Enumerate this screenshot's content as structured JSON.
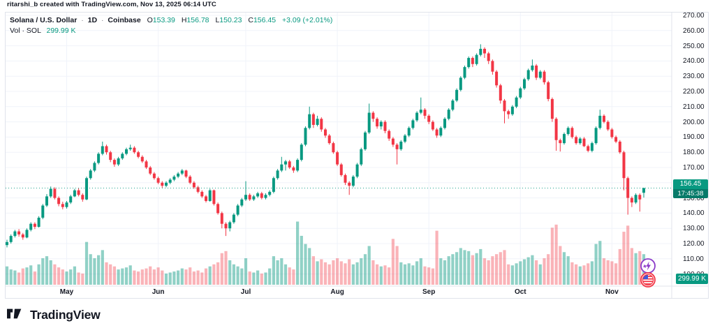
{
  "attribution": "ritarshi_b created with TradingView.com, Nov 13, 2025 06:14 UTC",
  "legend": {
    "symbol": "Solana / U.S. Dollar",
    "separator": "·",
    "interval": "1D",
    "exchange": "Coinbase",
    "ohlc": {
      "o_label": "O",
      "o": "153.39",
      "h_label": "H",
      "h": "156.78",
      "l_label": "L",
      "l": "150.23",
      "c_label": "C",
      "c": "156.45"
    },
    "change": "+3.09 (+2.01%)",
    "volume_label": "Vol · SOL",
    "volume_value": "299.99 K"
  },
  "axis": {
    "price_ticks": [
      "270.00",
      "260.00",
      "250.00",
      "240.00",
      "230.00",
      "220.00",
      "210.00",
      "200.00",
      "190.00",
      "180.00",
      "170.00",
      "160.00",
      "150.00",
      "140.00",
      "130.00",
      "120.00",
      "110.00",
      "100.00"
    ],
    "time_ticks": [
      {
        "label": "May",
        "index": 15
      },
      {
        "label": "Jun",
        "index": 38
      },
      {
        "label": "Jul",
        "index": 60
      },
      {
        "label": "Aug",
        "index": 83
      },
      {
        "label": "Sep",
        "index": 106
      },
      {
        "label": "Oct",
        "index": 129
      },
      {
        "label": "Nov",
        "index": 152
      }
    ],
    "price_tag": {
      "price": "156.45",
      "countdown": "17:45:38"
    },
    "volume_tag": "299.99 K"
  },
  "events": [
    {
      "name": "crypto-event",
      "color": "#8c3cc9"
    },
    {
      "name": "us-economic-event",
      "color": "#f23645"
    }
  ],
  "footer": {
    "brand": "TradingView"
  },
  "colors": {
    "up": "#089981",
    "down": "#f23645",
    "vol_up": "rgba(8,153,129,0.45)",
    "vol_down": "rgba(242,54,69,0.38)",
    "grid": "#f0f3fa",
    "axis_line": "#e0e3eb",
    "text": "#131722",
    "accent": "#089981"
  },
  "chart_data": {
    "type": "candlestick+volume",
    "title": "Solana / U.S. Dollar",
    "interval": "1D",
    "exchange": "Coinbase",
    "last": {
      "open": 153.39,
      "high": 156.78,
      "low": 150.23,
      "close": 156.45,
      "change": "+3.09 (+2.01%)",
      "volume_k": 299.99,
      "countdown": "17:45:38"
    },
    "ylim": [
      92,
      272
    ],
    "grid": true,
    "legend_position": "top-left",
    "columns": [
      "open",
      "high",
      "low",
      "close",
      "volume_k"
    ],
    "candles": [
      [
        119,
        122.5,
        117.5,
        121,
        180
      ],
      [
        121,
        126,
        120,
        125,
        150
      ],
      [
        125,
        129,
        124,
        128,
        140
      ],
      [
        128,
        129.5,
        124.5,
        126,
        120
      ],
      [
        126,
        127,
        122.5,
        124,
        160
      ],
      [
        124,
        130,
        123.5,
        129,
        170
      ],
      [
        129,
        134,
        128,
        133,
        190
      ],
      [
        133,
        134,
        129.5,
        131,
        130
      ],
      [
        131,
        138,
        130.5,
        137,
        200
      ],
      [
        137,
        146,
        136,
        145,
        260
      ],
      [
        145,
        152.5,
        144,
        151,
        280
      ],
      [
        151,
        157.5,
        150,
        156,
        240
      ],
      [
        156,
        157,
        149,
        150,
        200
      ],
      [
        150,
        151,
        144.5,
        146,
        170
      ],
      [
        146,
        147.5,
        142.5,
        144,
        150
      ],
      [
        144,
        148,
        143,
        147,
        130
      ],
      [
        147,
        152,
        146,
        151,
        150
      ],
      [
        151,
        156,
        150.5,
        155,
        180
      ],
      [
        155,
        156.5,
        151,
        152,
        120
      ],
      [
        152,
        153,
        147.5,
        149,
        110
      ],
      [
        149,
        164,
        148.5,
        163,
        420
      ],
      [
        163,
        169,
        162,
        168,
        300
      ],
      [
        168,
        174,
        167,
        173,
        260
      ],
      [
        173,
        180,
        172,
        179,
        290
      ],
      [
        179,
        187,
        178,
        184,
        340
      ],
      [
        184,
        185,
        178.5,
        180,
        220
      ],
      [
        180,
        181,
        173.5,
        175,
        200
      ],
      [
        175,
        176,
        170.5,
        172,
        180
      ],
      [
        172,
        177,
        171,
        176,
        150
      ],
      [
        176,
        180,
        175,
        179,
        160
      ],
      [
        179,
        183,
        178,
        182,
        170
      ],
      [
        182,
        185,
        181,
        183,
        190
      ],
      [
        183,
        184,
        179,
        180,
        140
      ],
      [
        180,
        181,
        176,
        177,
        130
      ],
      [
        177,
        178,
        173,
        174,
        150
      ],
      [
        174,
        175,
        169,
        170,
        160
      ],
      [
        170,
        171,
        165,
        166,
        180
      ],
      [
        166,
        167,
        162,
        163,
        150
      ],
      [
        163,
        164,
        159,
        160,
        170
      ],
      [
        160,
        161,
        156.5,
        158,
        140
      ],
      [
        158,
        161,
        157,
        160,
        110
      ],
      [
        160,
        163,
        159,
        162,
        120
      ],
      [
        162,
        165,
        161,
        164,
        130
      ],
      [
        164,
        167,
        163,
        166,
        140
      ],
      [
        166,
        169,
        165,
        168,
        160
      ],
      [
        168,
        168.5,
        163,
        164,
        150
      ],
      [
        164,
        165,
        159,
        160,
        170
      ],
      [
        160,
        161,
        156,
        157,
        130
      ],
      [
        157,
        158,
        153,
        154,
        140
      ],
      [
        154,
        155,
        150,
        151,
        120
      ],
      [
        151,
        152,
        147,
        148,
        160
      ],
      [
        148,
        156,
        147.5,
        155,
        180
      ],
      [
        155,
        155.5,
        145,
        146,
        200
      ],
      [
        146,
        147,
        139,
        140,
        220
      ],
      [
        140,
        141,
        130,
        133,
        310
      ],
      [
        133,
        134,
        125,
        130,
        330
      ],
      [
        130,
        135,
        128,
        134,
        240
      ],
      [
        134,
        140,
        133,
        139,
        200
      ],
      [
        139,
        146,
        138,
        145,
        180
      ],
      [
        145,
        150,
        144,
        149,
        160
      ],
      [
        149,
        161,
        148,
        152,
        260
      ],
      [
        152,
        153,
        148,
        149,
        130
      ],
      [
        149,
        152,
        148,
        151,
        120
      ],
      [
        151,
        154,
        150,
        153,
        140
      ],
      [
        153,
        154,
        149,
        150,
        110
      ],
      [
        150,
        153,
        149,
        152,
        120
      ],
      [
        152,
        155,
        151,
        154,
        160
      ],
      [
        154,
        164,
        153,
        163,
        280
      ],
      [
        163,
        169,
        162,
        168,
        240
      ],
      [
        168,
        177,
        167,
        172,
        260
      ],
      [
        172,
        175,
        168,
        174,
        200
      ],
      [
        174,
        175,
        169,
        170,
        170
      ],
      [
        170,
        171,
        166.5,
        168,
        150
      ],
      [
        168,
        176,
        167,
        175,
        620
      ],
      [
        175,
        186,
        174,
        185,
        480
      ],
      [
        185,
        197,
        184,
        196,
        400
      ],
      [
        196,
        210,
        195,
        205,
        360
      ],
      [
        205,
        206,
        196,
        198,
        280
      ],
      [
        198,
        204,
        197,
        202,
        230
      ],
      [
        202,
        203,
        193.5,
        195,
        250
      ],
      [
        195,
        196,
        189.5,
        191,
        220
      ],
      [
        191,
        192,
        185,
        186,
        200
      ],
      [
        186,
        187,
        179,
        180,
        240
      ],
      [
        180,
        181,
        171,
        172,
        260
      ],
      [
        172,
        173,
        164,
        165,
        230
      ],
      [
        165,
        166,
        158.5,
        160,
        210
      ],
      [
        160,
        161,
        152,
        158,
        250
      ],
      [
        158,
        165,
        157,
        164,
        200
      ],
      [
        164,
        173,
        163,
        172,
        220
      ],
      [
        172,
        183,
        171,
        182,
        260
      ],
      [
        182,
        194,
        181,
        193,
        300
      ],
      [
        193,
        212,
        192,
        206,
        380
      ],
      [
        206,
        207,
        200,
        202,
        240
      ],
      [
        202,
        203,
        195.5,
        197,
        200
      ],
      [
        197,
        201,
        195,
        200,
        180
      ],
      [
        200,
        201,
        192.5,
        194,
        190
      ],
      [
        194,
        195,
        187.5,
        189,
        170
      ],
      [
        189,
        190,
        183.5,
        185,
        450
      ],
      [
        185,
        186,
        172,
        182,
        380
      ],
      [
        182,
        188,
        181,
        187,
        220
      ],
      [
        187,
        192,
        186,
        191,
        200
      ],
      [
        191,
        197,
        190,
        196,
        210
      ],
      [
        196,
        202,
        195,
        201,
        190
      ],
      [
        201,
        207,
        200,
        206,
        230
      ],
      [
        206,
        216,
        205,
        208,
        260
      ],
      [
        208,
        209,
        202,
        204,
        180
      ],
      [
        204,
        205,
        198.5,
        200,
        170
      ],
      [
        200,
        201,
        194,
        195,
        160
      ],
      [
        195,
        196,
        189.5,
        191,
        530
      ],
      [
        191,
        197,
        190,
        196,
        260
      ],
      [
        196,
        203,
        195,
        202,
        240
      ],
      [
        202,
        209,
        201,
        208,
        280
      ],
      [
        208,
        215,
        207,
        214,
        300
      ],
      [
        214,
        222,
        213,
        221,
        320
      ],
      [
        221,
        230,
        220,
        229,
        360
      ],
      [
        229,
        237,
        228,
        236,
        340
      ],
      [
        236,
        243,
        235,
        242,
        330
      ],
      [
        242,
        243,
        236,
        238,
        290
      ],
      [
        238,
        245,
        237,
        244,
        310
      ],
      [
        244,
        251,
        243,
        248,
        350
      ],
      [
        248,
        249,
        242,
        245,
        260
      ],
      [
        245,
        246,
        238,
        240,
        240
      ],
      [
        240,
        241,
        231,
        233,
        280
      ],
      [
        233,
        234,
        222.5,
        224,
        300
      ],
      [
        224,
        225,
        212,
        214,
        320
      ],
      [
        214,
        215,
        199,
        207,
        340
      ],
      [
        207,
        208,
        202,
        205,
        200
      ],
      [
        205,
        211,
        204,
        210,
        190
      ],
      [
        210,
        217,
        209,
        216,
        210
      ],
      [
        216,
        223,
        215,
        222,
        230
      ],
      [
        222,
        229,
        221,
        228,
        250
      ],
      [
        228,
        235,
        227,
        234,
        270
      ],
      [
        234,
        241,
        233,
        237,
        290
      ],
      [
        237,
        238,
        227.5,
        229,
        240
      ],
      [
        229,
        234,
        228,
        233,
        200
      ],
      [
        233,
        234,
        224.5,
        226,
        260
      ],
      [
        226,
        227,
        213.5,
        215,
        300
      ],
      [
        215,
        216,
        200,
        202,
        560
      ],
      [
        202,
        203,
        181,
        188,
        590
      ],
      [
        188,
        189,
        180.5,
        186,
        380
      ],
      [
        186,
        193,
        185,
        192,
        320
      ],
      [
        192,
        197,
        191,
        196,
        280
      ],
      [
        196,
        197,
        189,
        190,
        220
      ],
      [
        190,
        191,
        185,
        186,
        200
      ],
      [
        186,
        190,
        185,
        189,
        180
      ],
      [
        189,
        190,
        183.5,
        184,
        190
      ],
      [
        184,
        185,
        180,
        181,
        210
      ],
      [
        181,
        187,
        180,
        186,
        230
      ],
      [
        186,
        197,
        185,
        196,
        400
      ],
      [
        196,
        208,
        195,
        204,
        430
      ],
      [
        204,
        205,
        199,
        200,
        260
      ],
      [
        200,
        201,
        194,
        195,
        240
      ],
      [
        195,
        196,
        189,
        190,
        230
      ],
      [
        190,
        191,
        186,
        187,
        210
      ],
      [
        187,
        188,
        179,
        180,
        350
      ],
      [
        180,
        181,
        155,
        163,
        520
      ],
      [
        163,
        164,
        139,
        150,
        580
      ],
      [
        150,
        151,
        144,
        147,
        360
      ],
      [
        147,
        153,
        146,
        152,
        310
      ],
      [
        152,
        153,
        141,
        149,
        330
      ],
      [
        153.39,
        156.78,
        150.23,
        156.45,
        299.99
      ]
    ]
  }
}
